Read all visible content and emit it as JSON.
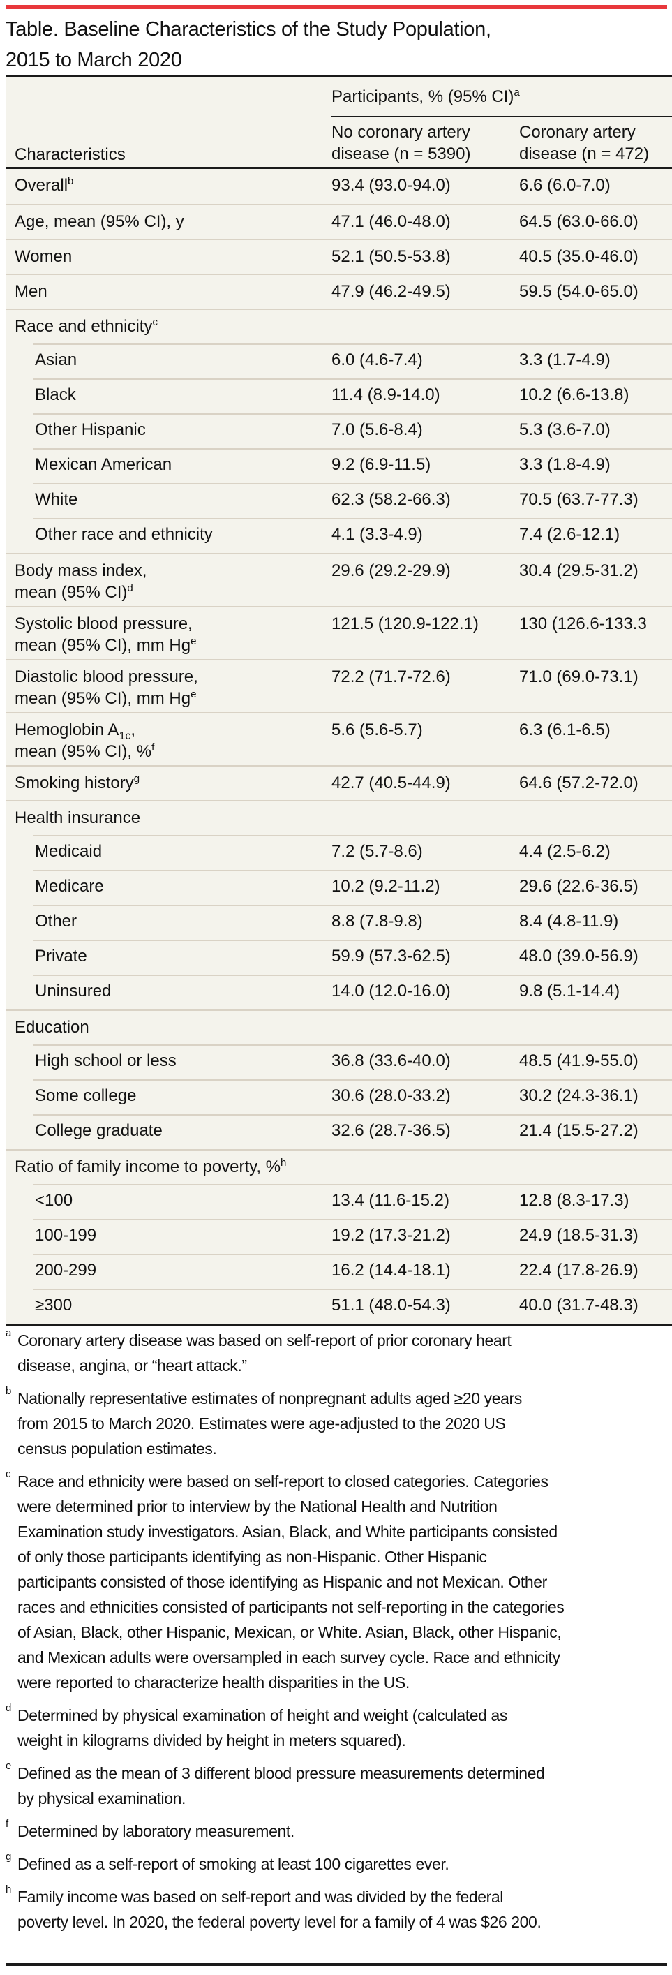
{
  "title": {
    "line1": "Table. Baseline Characteristics of the Study Population,",
    "line2": "2015 to March 2020"
  },
  "colors": {
    "accent_rule": "#e8373b",
    "table_bg": "#f4f3ec",
    "row_border": "#d9d2c5"
  },
  "table": {
    "group_header": {
      "text": "Participants, % (95% CI)",
      "sup": "a"
    },
    "columns": [
      {
        "line1": "No coronary artery",
        "line2": "disease (n = 5390)"
      },
      {
        "line1": "Coronary artery",
        "line2": "disease (n = 472)"
      }
    ],
    "characteristics_header": "Characteristics",
    "rows": [
      {
        "label": "Overall",
        "sup": "b",
        "v1": "93.4 (93.0-94.0)",
        "v2": "6.6 (6.0-7.0)"
      },
      {
        "label": "Age, mean (95% CI), y",
        "v1": "47.1 (46.0-48.0)",
        "v2": "64.5 (63.0-66.0)"
      },
      {
        "label": "Women",
        "v1": "52.1 (50.5-53.8)",
        "v2": "40.5 (35.0-46.0)"
      },
      {
        "label": "Men",
        "v1": "47.9 (46.2-49.5)",
        "v2": "59.5 (54.0-65.0)"
      },
      {
        "label": "Race and ethnicity",
        "sup": "c",
        "v1": "",
        "v2": ""
      },
      {
        "label": "Asian",
        "v1": "6.0 (4.6-7.4)",
        "v2": "3.3 (1.7-4.9)"
      },
      {
        "label": "Black",
        "v1": "11.4 (8.9-14.0)",
        "v2": "10.2 (6.6-13.8)"
      },
      {
        "label": "Other Hispanic",
        "v1": "7.0 (5.6-8.4)",
        "v2": "5.3 (3.6-7.0)"
      },
      {
        "label": "Mexican American",
        "v1": "9.2 (6.9-11.5)",
        "v2": "3.3 (1.8-4.9)"
      },
      {
        "label": "White",
        "v1": "62.3 (58.2-66.3)",
        "v2": "70.5 (63.7-77.3)"
      },
      {
        "label": "Other race and ethnicity",
        "v1": "4.1 (3.3-4.9)",
        "v2": "7.4 (2.6-12.1)"
      },
      {
        "label": "Body mass index,",
        "label2": "mean (95% CI)",
        "sup": "d",
        "v1": "29.6 (29.2-29.9)",
        "v2": "30.4 (29.5-31.2)"
      },
      {
        "label": "Systolic blood pressure,",
        "label2": "mean (95% CI), mm Hg",
        "sup": "e",
        "v1": "121.5 (120.9-122.1)",
        "v2": "130 (126.6-133.3"
      },
      {
        "label": "Diastolic blood pressure,",
        "label2": "mean (95% CI), mm Hg",
        "sup": "e",
        "v1": "72.2 (71.7-72.6)",
        "v2": "71.0 (69.0-73.1)"
      },
      {
        "label": "Hemoglobin A",
        "label_sub": "1c",
        "label_tail": ",",
        "label2": "mean (95% CI), %",
        "sup": "f",
        "v1": "5.6 (5.6-5.7)",
        "v2": "6.3 (6.1-6.5)"
      },
      {
        "label": "Smoking history",
        "sup": "g",
        "v1": "42.7 (40.5-44.9)",
        "v2": "64.6 (57.2-72.0)"
      },
      {
        "label": "Health insurance",
        "v1": "",
        "v2": ""
      },
      {
        "label": "Medicaid",
        "v1": "7.2 (5.7-8.6)",
        "v2": "4.4 (2.5-6.2)"
      },
      {
        "label": "Medicare",
        "v1": "10.2 (9.2-11.2)",
        "v2": "29.6 (22.6-36.5)"
      },
      {
        "label": "Other",
        "v1": "8.8 (7.8-9.8)",
        "v2": "8.4 (4.8-11.9)"
      },
      {
        "label": "Private",
        "v1": "59.9 (57.3-62.5)",
        "v2": "48.0 (39.0-56.9)"
      },
      {
        "label": "Uninsured",
        "v1": "14.0 (12.0-16.0)",
        "v2": "9.8 (5.1-14.4)"
      },
      {
        "label": "Education",
        "v1": "",
        "v2": ""
      },
      {
        "label": "High school or less",
        "v1": "36.8 (33.6-40.0)",
        "v2": "48.5 (41.9-55.0)"
      },
      {
        "label": "Some college",
        "v1": "30.6 (28.0-33.2)",
        "v2": "30.2 (24.3-36.1)"
      },
      {
        "label": "College graduate",
        "v1": "32.6 (28.7-36.5)",
        "v2": "21.4 (15.5-27.2)"
      },
      {
        "label": "Ratio of family income to poverty, %",
        "sup": "h",
        "v1": "",
        "v2": ""
      },
      {
        "label": "<100",
        "v1": "13.4 (11.6-15.2)",
        "v2": "12.8 (8.3-17.3)"
      },
      {
        "label": "100-199",
        "v1": "19.2 (17.3-21.2)",
        "v2": "24.9 (18.5-31.3)"
      },
      {
        "label": "200-299",
        "v1": "16.2 (14.4-18.1)",
        "v2": "22.4 (17.8-26.9)"
      },
      {
        "label": "≥300",
        "v1": "51.1 (48.0-54.3)",
        "v2": "40.0 (31.7-48.3)"
      }
    ]
  },
  "footnotes": [
    {
      "mark": "a",
      "lines": [
        "Coronary artery disease was based on self-report of prior coronary heart",
        "disease, angina, or “heart attack.”"
      ]
    },
    {
      "mark": "b",
      "lines": [
        "Nationally representative estimates of nonpregnant adults aged ≥20 years",
        "from 2015 to March 2020. Estimates were age-adjusted to the 2020 US",
        "census population estimates."
      ]
    },
    {
      "mark": "c",
      "lines": [
        "Race and ethnicity were based on self-report to closed categories. Categories",
        "were determined prior to interview by the National Health and Nutrition",
        "Examination study investigators. Asian, Black, and White participants consisted",
        "of only those participants identifying as non-Hispanic. Other Hispanic",
        "participants consisted of those identifying as Hispanic and not Mexican. Other",
        "races and ethnicities consisted of participants not self-reporting in the categories",
        "of Asian, Black, other Hispanic, Mexican, or White. Asian, Black, other Hispanic,",
        "and Mexican adults were oversampled in each survey cycle. Race and ethnicity",
        "were reported to characterize health disparities in the US."
      ]
    },
    {
      "mark": "d",
      "lines": [
        "Determined by physical examination of height and weight (calculated as",
        "weight in kilograms divided by height in meters squared)."
      ]
    },
    {
      "mark": "e",
      "lines": [
        "Defined as the mean of 3 different blood pressure measurements determined",
        "by physical examination."
      ]
    },
    {
      "mark": "f",
      "lines": [
        "Determined by laboratory measurement."
      ]
    },
    {
      "mark": "g",
      "lines": [
        "Defined as a self-report of smoking at least 100 cigarettes ever."
      ]
    },
    {
      "mark": "h",
      "lines": [
        "Family income was based on self-report and was divided by the federal",
        "poverty level. In 2020, the federal poverty level for a family of 4 was $26 200."
      ]
    }
  ]
}
